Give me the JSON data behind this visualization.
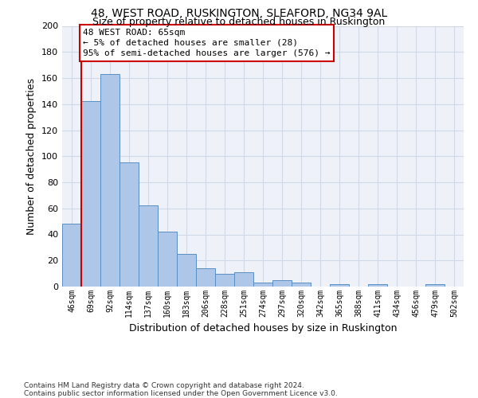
{
  "title1": "48, WEST ROAD, RUSKINGTON, SLEAFORD, NG34 9AL",
  "title2": "Size of property relative to detached houses in Ruskington",
  "xlabel": "Distribution of detached houses by size in Ruskington",
  "ylabel": "Number of detached properties",
  "categories": [
    "46sqm",
    "69sqm",
    "92sqm",
    "114sqm",
    "137sqm",
    "160sqm",
    "183sqm",
    "206sqm",
    "228sqm",
    "251sqm",
    "274sqm",
    "297sqm",
    "320sqm",
    "342sqm",
    "365sqm",
    "388sqm",
    "411sqm",
    "434sqm",
    "456sqm",
    "479sqm",
    "502sqm"
  ],
  "values": [
    48,
    142,
    163,
    95,
    62,
    42,
    25,
    14,
    10,
    11,
    3,
    5,
    3,
    0,
    2,
    0,
    2,
    0,
    0,
    2,
    0
  ],
  "bar_color": "#aec6e8",
  "bar_edge_color": "#5a8fc2",
  "grid_color": "#d0d8e8",
  "bg_color": "#eef2f8",
  "annotation_line1": "48 WEST ROAD: 65sqm",
  "annotation_line2": "← 5% of detached houses are smaller (28)",
  "annotation_line3": "95% of semi-detached houses are larger (576) →",
  "annotation_box_color": "#ffffff",
  "annotation_border_color": "#cc0000",
  "vline_color": "#cc0000",
  "footnote": "Contains HM Land Registry data © Crown copyright and database right 2024.\nContains public sector information licensed under the Open Government Licence v3.0.",
  "ylim_max": 200,
  "yticks": [
    0,
    20,
    40,
    60,
    80,
    100,
    120,
    140,
    160,
    180,
    200
  ]
}
